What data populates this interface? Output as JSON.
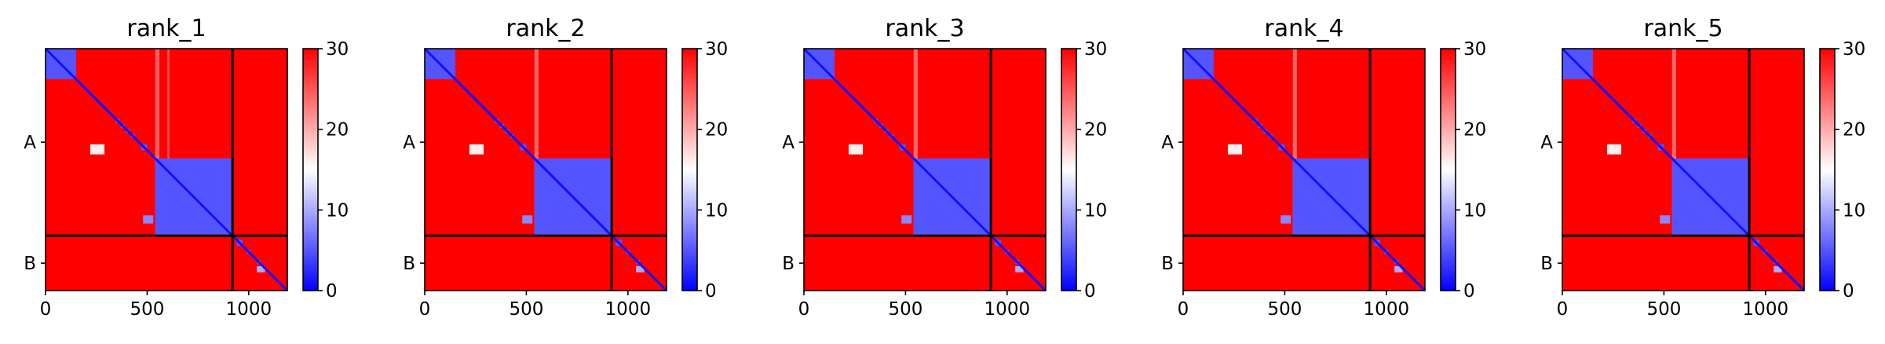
{
  "chart_data": {
    "type": "heatmap",
    "description_kind": "predicted aligned error matrices",
    "colormap": {
      "name": "bwr",
      "colors": [
        "#0000ff",
        "#ffffff",
        "#ff0000"
      ],
      "vmin": 0,
      "vmax": 30,
      "ticks": [
        0,
        10,
        20,
        30
      ]
    },
    "xlim": [
      0,
      1190
    ],
    "x_ticks": [
      0,
      500,
      1000
    ],
    "chains": [
      {
        "label": "A",
        "start": 0,
        "end": 920
      },
      {
        "label": "B",
        "start": 920,
        "end": 1190
      }
    ],
    "chain_boundary": 920,
    "panels": [
      {
        "title": "rank_1",
        "domains": [
          [
            0,
            150
          ],
          [
            345,
            365
          ],
          [
            370,
            390
          ],
          [
            395,
            415
          ],
          [
            420,
            440
          ],
          [
            470,
            500
          ],
          [
            540,
            920
          ],
          [
            940,
            970
          ],
          [
            990,
            1010
          ],
          [
            1040,
            1060
          ]
        ],
        "low_domains": [
          [
            0,
            150,
            0,
            150,
            4
          ],
          [
            540,
            920,
            540,
            920,
            6
          ]
        ],
        "hotspots": [
          [
            480,
            530,
            820,
            860,
            8
          ],
          [
            1040,
            1080,
            1070,
            1100,
            10
          ],
          [
            220,
            290,
            470,
            520,
            16
          ]
        ],
        "light_bands": [
          [
            540,
            560,
            0,
            920,
            20
          ],
          [
            600,
            610,
            0,
            920,
            22
          ]
        ]
      },
      {
        "title": "rank_2",
        "domains": [
          [
            0,
            150
          ],
          [
            345,
            365
          ],
          [
            370,
            390
          ],
          [
            395,
            415
          ],
          [
            420,
            440
          ],
          [
            470,
            500
          ],
          [
            540,
            920
          ],
          [
            940,
            970
          ],
          [
            990,
            1010
          ],
          [
            1040,
            1060
          ]
        ],
        "low_domains": [
          [
            0,
            150,
            0,
            150,
            4
          ],
          [
            540,
            920,
            540,
            920,
            6
          ]
        ],
        "hotspots": [
          [
            480,
            530,
            820,
            860,
            8
          ],
          [
            1040,
            1080,
            1070,
            1100,
            10
          ],
          [
            220,
            290,
            470,
            520,
            16
          ]
        ],
        "light_bands": [
          [
            540,
            560,
            0,
            920,
            20
          ]
        ]
      },
      {
        "title": "rank_3",
        "domains": [
          [
            0,
            150
          ],
          [
            345,
            365
          ],
          [
            370,
            390
          ],
          [
            395,
            415
          ],
          [
            420,
            440
          ],
          [
            470,
            500
          ],
          [
            540,
            920
          ],
          [
            940,
            970
          ],
          [
            990,
            1010
          ],
          [
            1040,
            1060
          ]
        ],
        "low_domains": [
          [
            0,
            150,
            0,
            150,
            4
          ],
          [
            540,
            920,
            540,
            920,
            6
          ]
        ],
        "hotspots": [
          [
            480,
            530,
            820,
            860,
            8
          ],
          [
            1040,
            1080,
            1070,
            1100,
            10
          ],
          [
            220,
            290,
            470,
            520,
            16
          ]
        ],
        "light_bands": [
          [
            540,
            560,
            0,
            920,
            20
          ]
        ]
      },
      {
        "title": "rank_4",
        "domains": [
          [
            0,
            150
          ],
          [
            345,
            365
          ],
          [
            370,
            390
          ],
          [
            395,
            415
          ],
          [
            420,
            440
          ],
          [
            470,
            500
          ],
          [
            540,
            920
          ],
          [
            940,
            970
          ],
          [
            990,
            1010
          ],
          [
            1040,
            1060
          ]
        ],
        "low_domains": [
          [
            0,
            150,
            0,
            150,
            4
          ],
          [
            540,
            920,
            540,
            920,
            6
          ]
        ],
        "hotspots": [
          [
            480,
            530,
            820,
            860,
            8
          ],
          [
            1040,
            1080,
            1070,
            1100,
            10
          ],
          [
            220,
            290,
            470,
            520,
            16
          ]
        ],
        "light_bands": [
          [
            540,
            560,
            0,
            920,
            20
          ]
        ]
      },
      {
        "title": "rank_5",
        "domains": [
          [
            0,
            150
          ],
          [
            345,
            365
          ],
          [
            370,
            390
          ],
          [
            395,
            415
          ],
          [
            420,
            440
          ],
          [
            470,
            500
          ],
          [
            540,
            920
          ],
          [
            940,
            970
          ],
          [
            990,
            1010
          ],
          [
            1040,
            1060
          ]
        ],
        "low_domains": [
          [
            0,
            150,
            0,
            150,
            4
          ],
          [
            540,
            920,
            540,
            920,
            6
          ]
        ],
        "hotspots": [
          [
            480,
            530,
            820,
            860,
            8
          ],
          [
            1040,
            1080,
            1070,
            1100,
            10
          ],
          [
            220,
            290,
            470,
            520,
            16
          ]
        ],
        "light_bands": [
          [
            540,
            560,
            0,
            920,
            20
          ]
        ]
      }
    ]
  }
}
